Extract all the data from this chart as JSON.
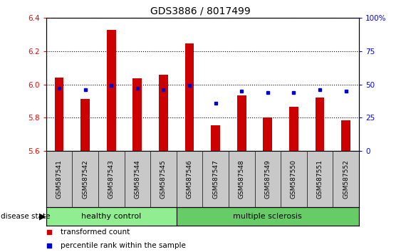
{
  "title": "GDS3886 / 8017499",
  "samples": [
    "GSM587541",
    "GSM587542",
    "GSM587543",
    "GSM587544",
    "GSM587545",
    "GSM587546",
    "GSM587547",
    "GSM587548",
    "GSM587549",
    "GSM587550",
    "GSM587551",
    "GSM587552"
  ],
  "red_values": [
    6.04,
    5.915,
    6.325,
    6.035,
    6.06,
    6.245,
    5.755,
    5.935,
    5.8,
    5.865,
    5.92,
    5.785
  ],
  "blue_values": [
    47,
    46,
    49,
    47,
    46,
    49,
    36,
    45,
    44,
    44,
    46,
    45
  ],
  "y_min": 5.6,
  "y_max": 6.4,
  "y_ticks_red": [
    5.6,
    5.8,
    6.0,
    6.2,
    6.4
  ],
  "y_ticks_blue": [
    0,
    25,
    50,
    75,
    100
  ],
  "groups": [
    {
      "label": "healthy control",
      "start": 0,
      "end": 5,
      "color": "#90ee90"
    },
    {
      "label": "multiple sclerosis",
      "start": 5,
      "end": 12,
      "color": "#66cc66"
    }
  ],
  "bar_color": "#cc0000",
  "dot_color": "#0000cc",
  "bar_width": 0.35,
  "legend_items": [
    {
      "label": "transformed count",
      "color": "#cc0000"
    },
    {
      "label": "percentile rank within the sample",
      "color": "#0000cc"
    }
  ],
  "disease_state_label": "disease state",
  "background_color": "#ffffff",
  "plot_bg_color": "#ffffff",
  "tick_area_color": "#c8c8c8"
}
